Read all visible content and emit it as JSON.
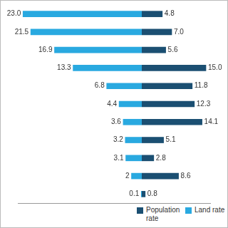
{
  "chart_data": [
    {
      "type": "bar",
      "orientation": "horizontal",
      "categories": [
        null,
        null,
        null,
        null,
        null,
        null,
        null,
        null,
        null,
        null,
        null
      ],
      "series": [
        {
          "name": "Population rate",
          "color": "#1b4f72",
          "values": [
            4.8,
            7.0,
            5.6,
            15.0,
            11.8,
            12.3,
            14.1,
            5.1,
            2.8,
            8.6,
            0.8
          ],
          "value_labels": [
            "4.8",
            "7.0",
            "5.6",
            "15.0",
            "11.8",
            "12.3",
            "14.1",
            "5.1",
            "2.8",
            "8.6",
            "0.8"
          ]
        }
      ],
      "xlim": [
        0,
        16
      ],
      "grid": false,
      "data_labels": true,
      "tick_labels": false,
      "legend": "bottom"
    },
    {
      "type": "bar",
      "orientation": "horizontal",
      "categories": [
        null,
        null,
        null,
        null,
        null,
        null,
        null,
        null,
        null,
        null,
        null
      ],
      "series": [
        {
          "name": "Land rate",
          "color": "#29a9e0",
          "values": [
            23.0,
            21.5,
            16.9,
            13.3,
            6.8,
            4.4,
            3.6,
            3.2,
            3.1,
            2,
            0.1
          ],
          "value_labels": [
            "23.0",
            "21.5",
            "16.9",
            "13.3",
            "6.8",
            "4.4",
            "3.6",
            "3.2",
            "3.1",
            "2",
            "0.1"
          ]
        }
      ],
      "xlim": [
        0,
        24
      ],
      "grid": false,
      "data_labels": true,
      "tick_labels": false,
      "legend": "bottom"
    }
  ]
}
